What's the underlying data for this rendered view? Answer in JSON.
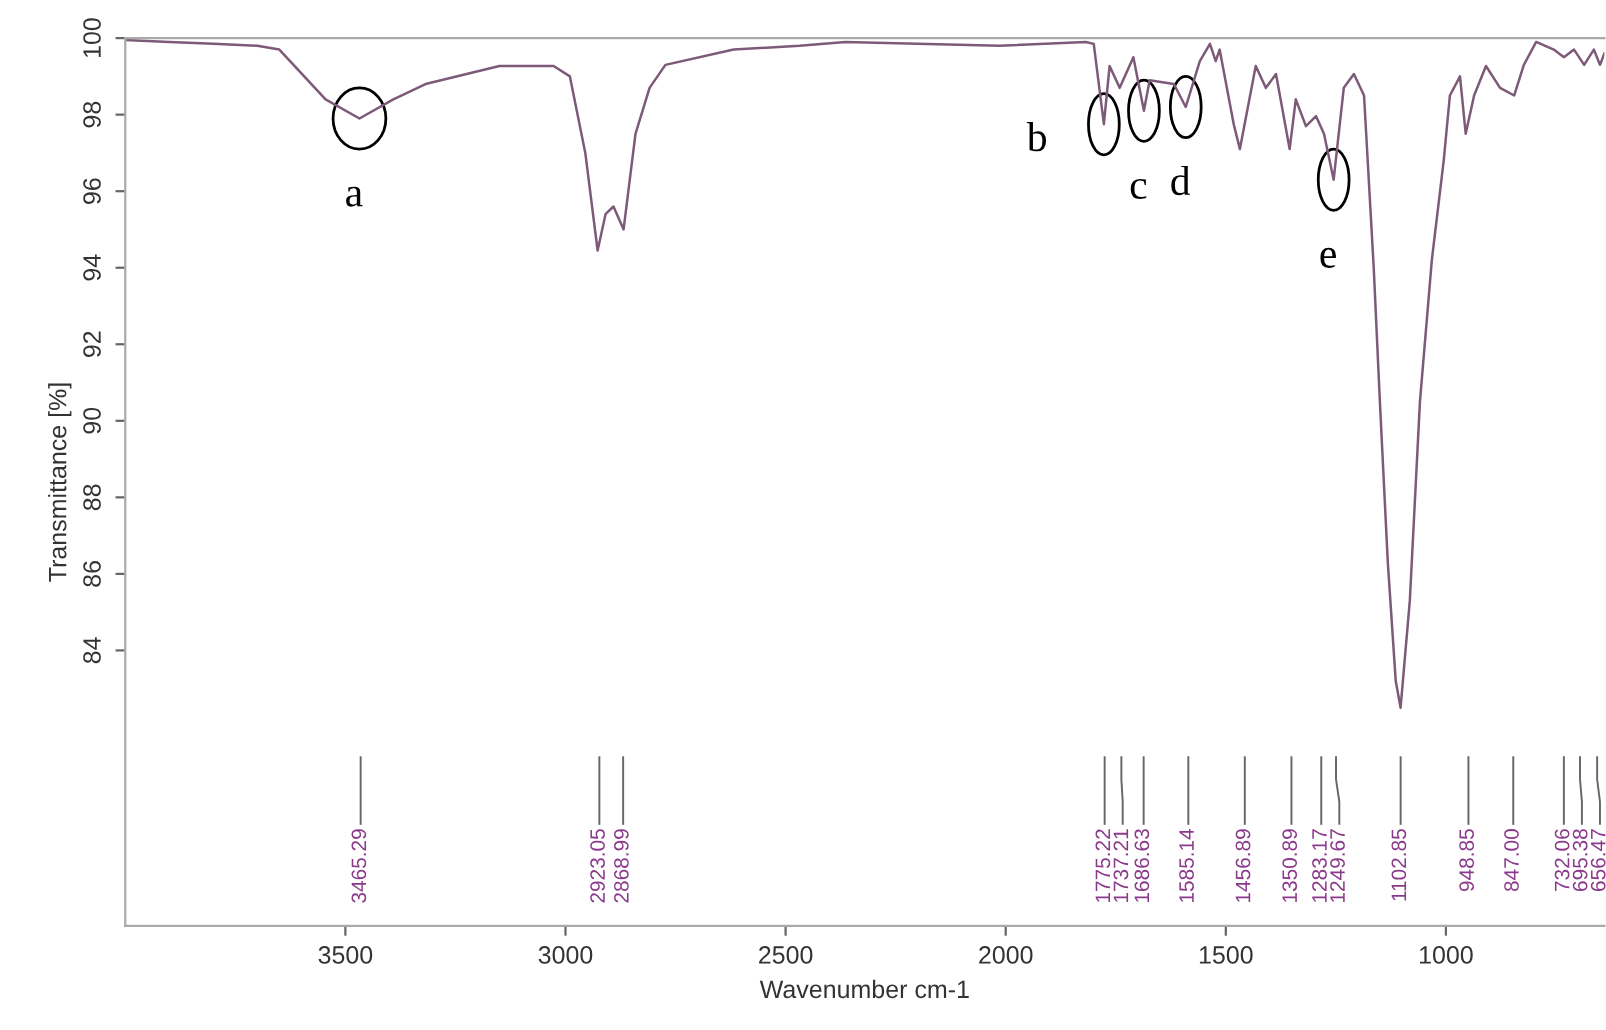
{
  "chart_data": {
    "type": "line",
    "xlabel": "Wavenumber cm-1",
    "ylabel": "Transmittance [%]",
    "xlim": [
      4000,
      640
    ],
    "ylim": [
      76.8,
      100
    ],
    "xticks": [
      3500,
      3000,
      2500,
      2000,
      1500,
      1000
    ],
    "yticks": [
      84,
      86,
      88,
      90,
      92,
      94,
      96,
      98,
      100
    ],
    "series": [
      {
        "color": "#7d5a78",
        "x": [
          4000,
          3900,
          3800,
          3700,
          3650,
          3545,
          3468,
          3391,
          3318,
          3150,
          3027,
          2990,
          2955,
          2927,
          2909,
          2891,
          2868,
          2841,
          2809,
          2773,
          2618,
          2468,
          2364,
          2014,
          1818,
          1800,
          1777,
          1764,
          1741,
          1710,
          1686,
          1673,
          1618,
          1591,
          1559,
          1536,
          1523,
          1514,
          1482,
          1468,
          1432,
          1409,
          1386,
          1355,
          1341,
          1318,
          1295,
          1277,
          1255,
          1232,
          1209,
          1186,
          1164,
          1150,
          1132,
          1114,
          1103,
          1082,
          1059,
          1032,
          1005,
          991,
          968,
          955,
          936,
          909,
          877,
          845,
          823,
          795,
          755,
          732,
          709,
          686,
          664,
          650,
          640
        ],
        "values": [
          99.95,
          99.9,
          99.85,
          99.8,
          99.7,
          98.4,
          97.9,
          98.4,
          98.8,
          99.27,
          99.27,
          99.0,
          97.0,
          94.45,
          95.4,
          95.6,
          95.0,
          97.5,
          98.7,
          99.3,
          99.7,
          99.8,
          99.9,
          99.8,
          99.9,
          99.85,
          97.75,
          99.27,
          98.7,
          99.5,
          98.1,
          98.9,
          98.8,
          98.2,
          99.4,
          99.85,
          99.4,
          99.7,
          97.75,
          97.1,
          99.27,
          98.7,
          99.06,
          97.1,
          98.4,
          97.7,
          97.96,
          97.5,
          96.3,
          98.7,
          99.06,
          98.5,
          94.0,
          90.5,
          86.3,
          83.2,
          82.5,
          85.3,
          90.5,
          94.2,
          96.8,
          98.5,
          99.0,
          97.5,
          98.5,
          99.27,
          98.7,
          98.5,
          99.3,
          99.9,
          99.7,
          99.5,
          99.7,
          99.3,
          99.7,
          99.3,
          99.6
        ]
      }
    ],
    "annotations": [
      {
        "text": "a",
        "x": 3468,
        "y": 97.9
      },
      {
        "text": "b",
        "x": 1777,
        "y": 97.75
      },
      {
        "text": "c",
        "x": 1686,
        "y": 98.1
      },
      {
        "text": "d",
        "x": 1591,
        "y": 98.2
      },
      {
        "text": "e",
        "x": 1255,
        "y": 96.3
      }
    ],
    "ref_lines": [
      {
        "axis": "x",
        "value": 3465.29,
        "label": "3465.29"
      },
      {
        "axis": "x",
        "value": 2923.05,
        "label": "2923.05"
      },
      {
        "axis": "x",
        "value": 2868.99,
        "label": "2868.99"
      },
      {
        "axis": "x",
        "value": 1775.22,
        "label": "1775.22"
      },
      {
        "axis": "x",
        "value": 1737.21,
        "label": "1737.21"
      },
      {
        "axis": "x",
        "value": 1686.63,
        "label": "1686.63"
      },
      {
        "axis": "x",
        "value": 1585.14,
        "label": "1585.14"
      },
      {
        "axis": "x",
        "value": 1456.89,
        "label": "1456.89"
      },
      {
        "axis": "x",
        "value": 1350.89,
        "label": "1350.89"
      },
      {
        "axis": "x",
        "value": 1283.17,
        "label": "1283.17"
      },
      {
        "axis": "x",
        "value": 1249.67,
        "label": "1249.67"
      },
      {
        "axis": "x",
        "value": 1102.85,
        "label": "1102.85"
      },
      {
        "axis": "x",
        "value": 948.85,
        "label": "948.85"
      },
      {
        "axis": "x",
        "value": 847.0,
        "label": "847.00"
      },
      {
        "axis": "x",
        "value": 732.06,
        "label": "732.06"
      },
      {
        "axis": "x",
        "value": 695.38,
        "label": "695.38"
      },
      {
        "axis": "x",
        "value": 656.47,
        "label": "656.47"
      }
    ]
  }
}
